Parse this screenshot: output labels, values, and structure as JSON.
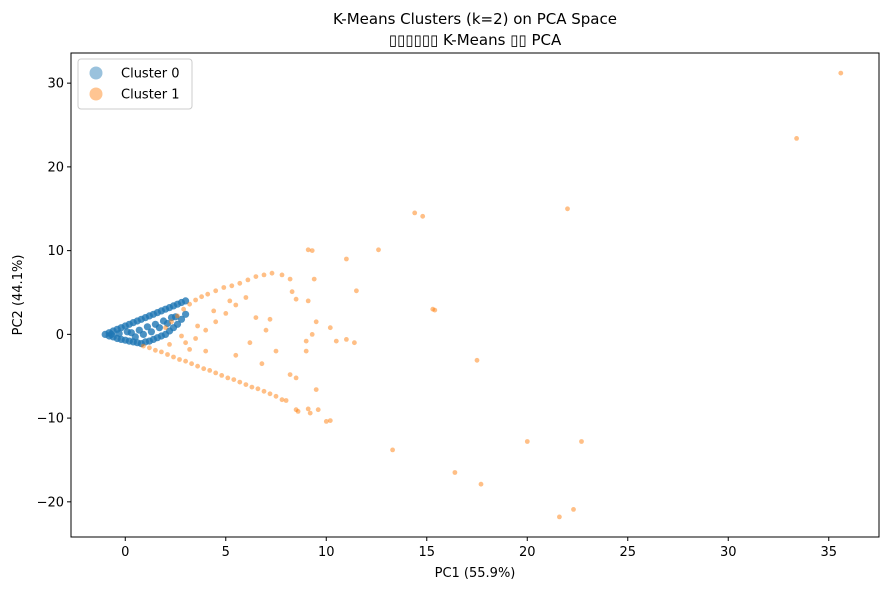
{
  "chart_data": {
    "type": "scatter",
    "title": "K-Means Clusters (k=2) on PCA Space",
    "subtitle": "▯▯▯▯▯▯ K-Means ▯▯ PCA",
    "xlabel": "PC1 (55.9%)",
    "ylabel": "PC2 (44.1%)",
    "xlim": [
      -2.7,
      37.5
    ],
    "ylim": [
      -24.2,
      33.6
    ],
    "xticks": [
      0,
      5,
      10,
      15,
      20,
      25,
      30,
      35
    ],
    "yticks": [
      -20,
      -10,
      0,
      10,
      20,
      30
    ],
    "xtick_labels": [
      "0",
      "5",
      "10",
      "15",
      "20",
      "25",
      "30",
      "35"
    ],
    "ytick_labels": [
      "−20",
      "−10",
      "0",
      "10",
      "20",
      "30"
    ],
    "grid": false,
    "legend_position": "top-left",
    "series": [
      {
        "name": "Cluster 0",
        "color": "#1f77b4",
        "points": [
          [
            -1.0,
            0.0
          ],
          [
            -0.8,
            0.2
          ],
          [
            -0.8,
            -0.2
          ],
          [
            -0.6,
            0.4
          ],
          [
            -0.6,
            -0.3
          ],
          [
            -0.4,
            0.6
          ],
          [
            -0.4,
            -0.5
          ],
          [
            -0.2,
            0.8
          ],
          [
            -0.2,
            -0.6
          ],
          [
            0.0,
            1.0
          ],
          [
            0.0,
            -0.7
          ],
          [
            0.2,
            1.2
          ],
          [
            0.2,
            -0.8
          ],
          [
            0.4,
            1.4
          ],
          [
            0.4,
            -0.9
          ],
          [
            0.6,
            1.6
          ],
          [
            0.6,
            -1.0
          ],
          [
            0.8,
            1.8
          ],
          [
            0.8,
            -1.1
          ],
          [
            1.0,
            2.0
          ],
          [
            1.0,
            -0.9
          ],
          [
            1.2,
            2.2
          ],
          [
            1.2,
            -0.8
          ],
          [
            1.4,
            2.4
          ],
          [
            1.4,
            -0.6
          ],
          [
            1.6,
            2.6
          ],
          [
            1.6,
            -0.4
          ],
          [
            1.8,
            2.8
          ],
          [
            1.8,
            -0.2
          ],
          [
            2.0,
            3.0
          ],
          [
            2.0,
            0.0
          ],
          [
            2.2,
            3.2
          ],
          [
            2.2,
            0.4
          ],
          [
            2.4,
            3.4
          ],
          [
            2.4,
            0.8
          ],
          [
            2.6,
            3.6
          ],
          [
            2.6,
            1.2
          ],
          [
            2.8,
            3.8
          ],
          [
            2.8,
            1.8
          ],
          [
            3.0,
            4.0
          ],
          [
            3.0,
            2.4
          ],
          [
            0.3,
            0.2
          ],
          [
            0.7,
            0.5
          ],
          [
            1.1,
            0.9
          ],
          [
            1.5,
            1.2
          ],
          [
            1.9,
            1.6
          ],
          [
            2.3,
            2.0
          ],
          [
            0.5,
            -0.3
          ],
          [
            0.9,
            0.0
          ],
          [
            1.3,
            0.3
          ],
          [
            1.7,
            0.8
          ],
          [
            2.1,
            1.3
          ],
          [
            2.5,
            2.1
          ],
          [
            0.1,
            0.3
          ],
          [
            -0.3,
            0.1
          ],
          [
            -0.7,
            0.0
          ]
        ]
      },
      {
        "name": "Cluster 1",
        "color": "#ff7f0e",
        "points": [
          [
            0.9,
            -1.4
          ],
          [
            1.2,
            -1.6
          ],
          [
            1.5,
            -1.9
          ],
          [
            1.8,
            -2.1
          ],
          [
            2.1,
            -2.4
          ],
          [
            2.4,
            -2.7
          ],
          [
            2.7,
            -3.0
          ],
          [
            3.0,
            -3.2
          ],
          [
            3.3,
            -3.5
          ],
          [
            3.6,
            -3.8
          ],
          [
            3.9,
            -4.1
          ],
          [
            4.2,
            -4.3
          ],
          [
            4.5,
            -4.6
          ],
          [
            4.8,
            -4.9
          ],
          [
            5.1,
            -5.2
          ],
          [
            5.4,
            -5.4
          ],
          [
            5.7,
            -5.7
          ],
          [
            6.0,
            -6.0
          ],
          [
            6.3,
            -6.3
          ],
          [
            6.6,
            -6.5
          ],
          [
            6.9,
            -6.8
          ],
          [
            7.2,
            -7.1
          ],
          [
            7.5,
            -7.4
          ],
          [
            7.8,
            -7.8
          ],
          [
            8.0,
            -7.9
          ],
          [
            8.5,
            -9.0
          ],
          [
            8.6,
            -9.2
          ],
          [
            9.1,
            -8.9
          ],
          [
            9.2,
            -9.4
          ],
          [
            9.6,
            -9.0
          ],
          [
            10.0,
            -10.4
          ],
          [
            10.2,
            -10.3
          ],
          [
            2.0,
            0.8
          ],
          [
            2.3,
            1.5
          ],
          [
            2.6,
            2.2
          ],
          [
            2.9,
            3.0
          ],
          [
            3.2,
            3.6
          ],
          [
            3.5,
            4.1
          ],
          [
            3.8,
            4.5
          ],
          [
            4.1,
            4.8
          ],
          [
            4.5,
            5.2
          ],
          [
            4.9,
            5.6
          ],
          [
            5.3,
            5.8
          ],
          [
            5.7,
            6.1
          ],
          [
            6.1,
            6.5
          ],
          [
            6.5,
            6.9
          ],
          [
            6.9,
            7.1
          ],
          [
            7.3,
            7.3
          ],
          [
            7.8,
            7.1
          ],
          [
            8.2,
            6.6
          ],
          [
            8.3,
            5.1
          ],
          [
            8.5,
            4.2
          ],
          [
            3.0,
            -1.0
          ],
          [
            3.5,
            -0.5
          ],
          [
            4.0,
            0.5
          ],
          [
            4.5,
            1.5
          ],
          [
            5.0,
            2.5
          ],
          [
            5.5,
            3.5
          ],
          [
            6.0,
            4.4
          ],
          [
            6.5,
            2.0
          ],
          [
            7.0,
            0.5
          ],
          [
            7.5,
            -2.0
          ],
          [
            6.8,
            -3.5
          ],
          [
            5.5,
            -2.5
          ],
          [
            4.0,
            -2.0
          ],
          [
            3.2,
            -1.8
          ],
          [
            2.2,
            -1.2
          ],
          [
            2.8,
            -0.2
          ],
          [
            3.6,
            1.0
          ],
          [
            4.4,
            2.8
          ],
          [
            5.2,
            4.0
          ],
          [
            6.2,
            -1.0
          ],
          [
            7.2,
            1.8
          ],
          [
            8.2,
            -4.8
          ],
          [
            8.5,
            -5.2
          ],
          [
            9.0,
            -2.0
          ],
          [
            9.3,
            0.0
          ],
          [
            9.5,
            1.5
          ],
          [
            9.5,
            -6.6
          ],
          [
            9.1,
            4.0
          ],
          [
            9.4,
            6.6
          ],
          [
            9.3,
            10.0
          ],
          [
            9.1,
            10.1
          ],
          [
            9.0,
            -0.8
          ],
          [
            10.2,
            0.8
          ],
          [
            10.5,
            -0.8
          ],
          [
            11.0,
            9.0
          ],
          [
            11.0,
            -0.6
          ],
          [
            11.4,
            -1.0
          ],
          [
            11.5,
            5.2
          ],
          [
            12.6,
            10.1
          ],
          [
            13.3,
            -13.8
          ],
          [
            14.4,
            14.5
          ],
          [
            14.8,
            14.1
          ],
          [
            15.3,
            3.0
          ],
          [
            15.4,
            2.9
          ],
          [
            16.4,
            -16.5
          ],
          [
            17.5,
            -3.1
          ],
          [
            17.7,
            -17.9
          ],
          [
            20.0,
            -12.8
          ],
          [
            21.6,
            -21.8
          ],
          [
            22.0,
            15.0
          ],
          [
            22.3,
            -20.9
          ],
          [
            22.7,
            -12.8
          ],
          [
            33.4,
            23.4
          ],
          [
            35.6,
            31.2
          ]
        ]
      }
    ]
  }
}
